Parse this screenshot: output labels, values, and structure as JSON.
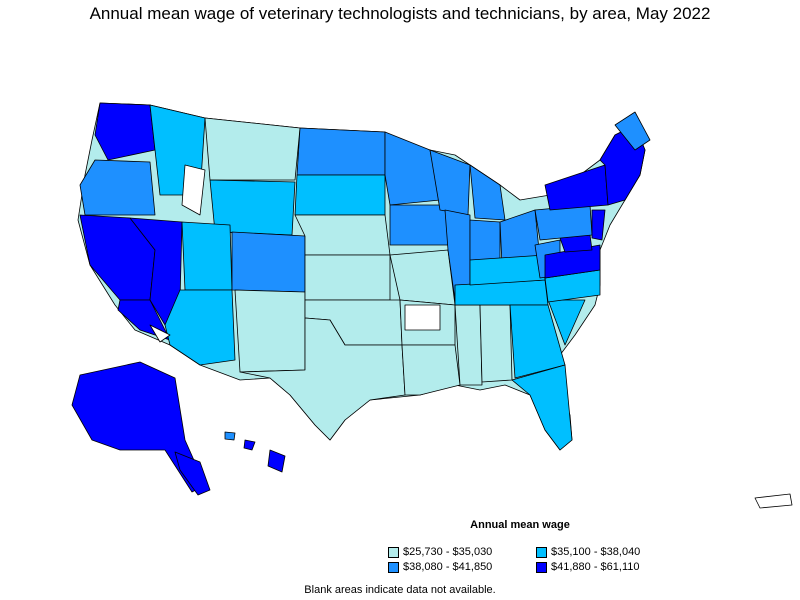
{
  "title": "Annual mean wage of veterinary technologists and technicians, by area, May 2022",
  "legend": {
    "title": "Annual mean wage",
    "items": [
      {
        "label": "$25,730 - $35,030",
        "color": "#b3ecec"
      },
      {
        "label": "$35,100 - $38,040",
        "color": "#00bfff"
      },
      {
        "label": "$38,080 - $41,850",
        "color": "#1e90ff"
      },
      {
        "label": "$41,880 - $61,110",
        "color": "#0000ff"
      }
    ]
  },
  "footnote": "Blank areas indicate data not available.",
  "colors": {
    "tier1": "#b3ecec",
    "tier2": "#00bfff",
    "tier3": "#1e90ff",
    "tier4": "#0000ff",
    "blank": "#ffffff",
    "border": "#000000"
  }
}
